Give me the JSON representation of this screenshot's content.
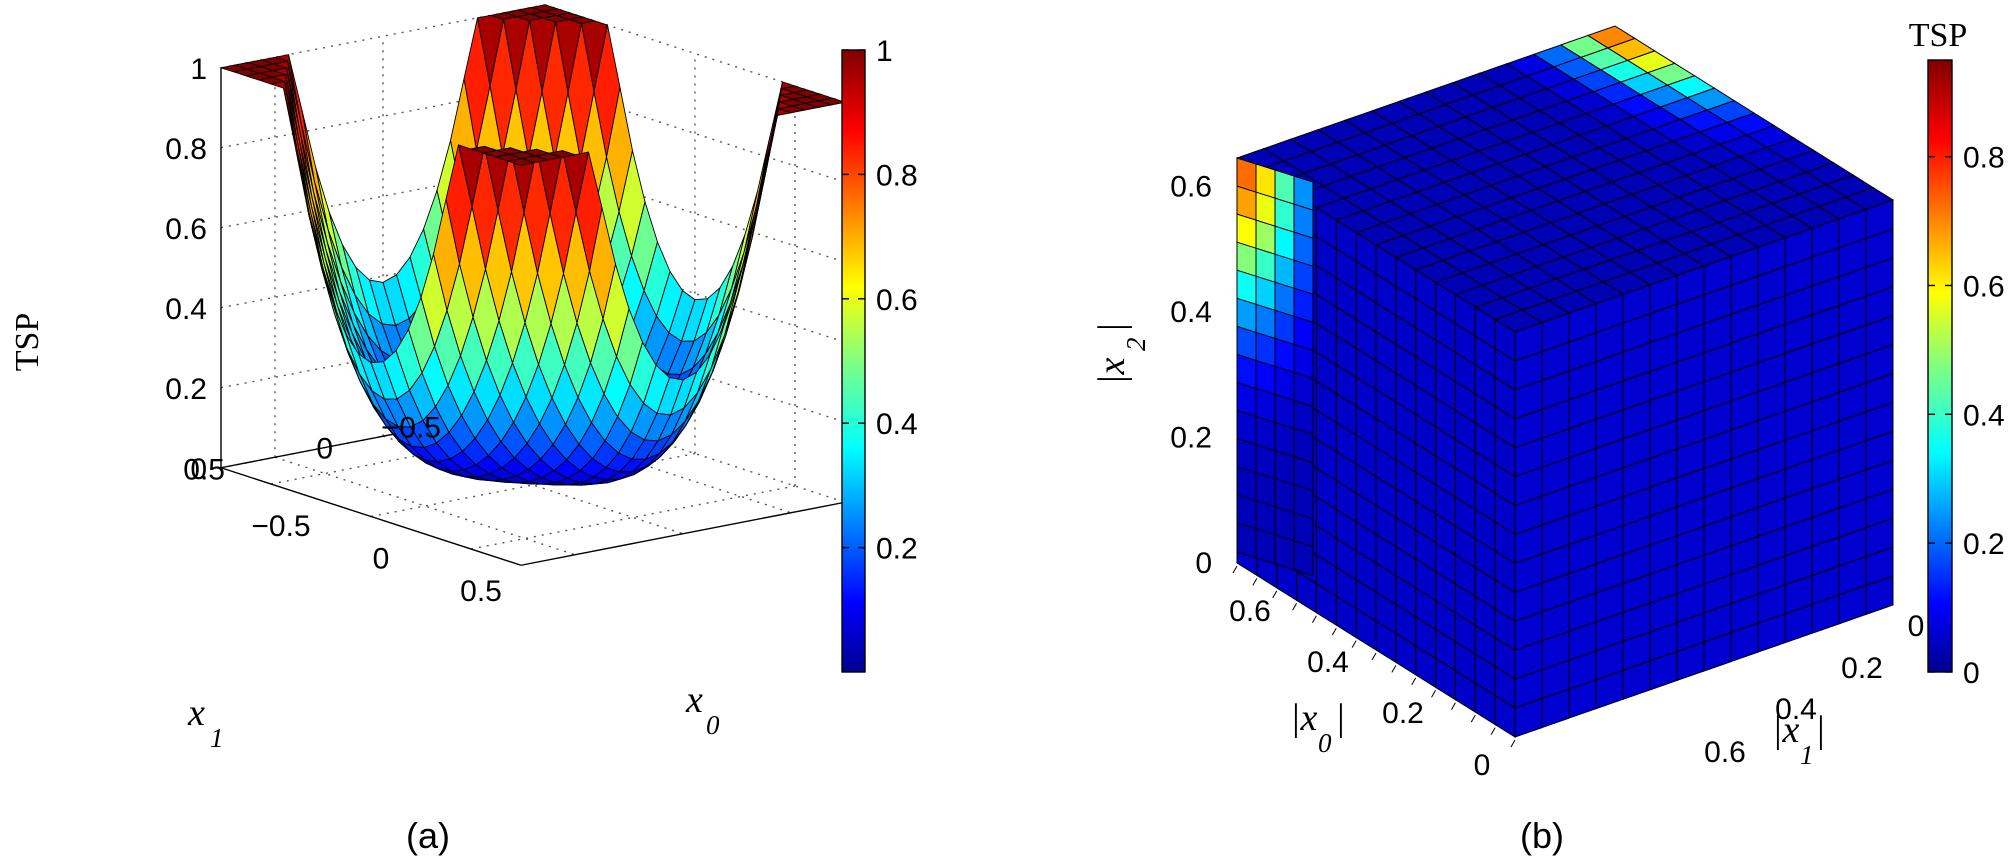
{
  "chart_data": [
    {
      "type": "surface",
      "panel": "(a)",
      "zlabel": "TSP",
      "xlabel": "x",
      "xlabel_sub": "0",
      "ylabel": "x",
      "ylabel_sub": "1",
      "x_ticks": [
        "−0.5",
        "0",
        "0.5"
      ],
      "y_ticks": [
        "−0.5",
        "0",
        "0.5"
      ],
      "z_ticks": [
        "0",
        "0.2",
        "0.4",
        "0.6",
        "0.8",
        "1"
      ],
      "xlim": [
        -0.75,
        0.75
      ],
      "ylim": [
        -0.75,
        0.75
      ],
      "zlim": [
        0,
        1
      ],
      "grid": true,
      "colorbar": {
        "ticks": [
          "0.2",
          "0.4",
          "0.6",
          "0.8",
          "1"
        ],
        "range": [
          0,
          1
        ]
      },
      "surface": {
        "description_values": [
          {
            "x0": -0.7,
            "x1": -0.7,
            "tsp": 0.98
          },
          {
            "x0": 0.7,
            "x1": 0.7,
            "tsp": 0.99
          },
          {
            "x0": 0.7,
            "x1": -0.7,
            "tsp": 0.96
          },
          {
            "x0": -0.7,
            "x1": 0.7,
            "tsp": 0.93
          },
          {
            "x0": 0,
            "x1": 0,
            "tsp": 0.02
          }
        ]
      }
    },
    {
      "type": "voxel",
      "panel": "(b)",
      "colorbar_title": "TSP",
      "xlabel": "|x",
      "xlabel_sub": "0",
      "ylabel": "|x",
      "ylabel_sub": "1",
      "zlabel": "|x",
      "zlabel_sub": "2",
      "x_ticks": [
        "0",
        "0.2",
        "0.4",
        "0.6"
      ],
      "y_ticks": [
        "0",
        "0.2",
        "0.4",
        "0.6"
      ],
      "z_ticks": [
        "0",
        "0.2",
        "0.4",
        "0.6"
      ],
      "xlim": [
        0,
        0.7
      ],
      "ylim": [
        0,
        0.7
      ],
      "zlim": [
        0,
        0.7
      ],
      "colorbar": {
        "ticks": [
          "0",
          "0.2",
          "0.4",
          "0.6",
          "0.8"
        ],
        "range": [
          0,
          0.95
        ]
      },
      "corner_value": 0.7
    }
  ]
}
